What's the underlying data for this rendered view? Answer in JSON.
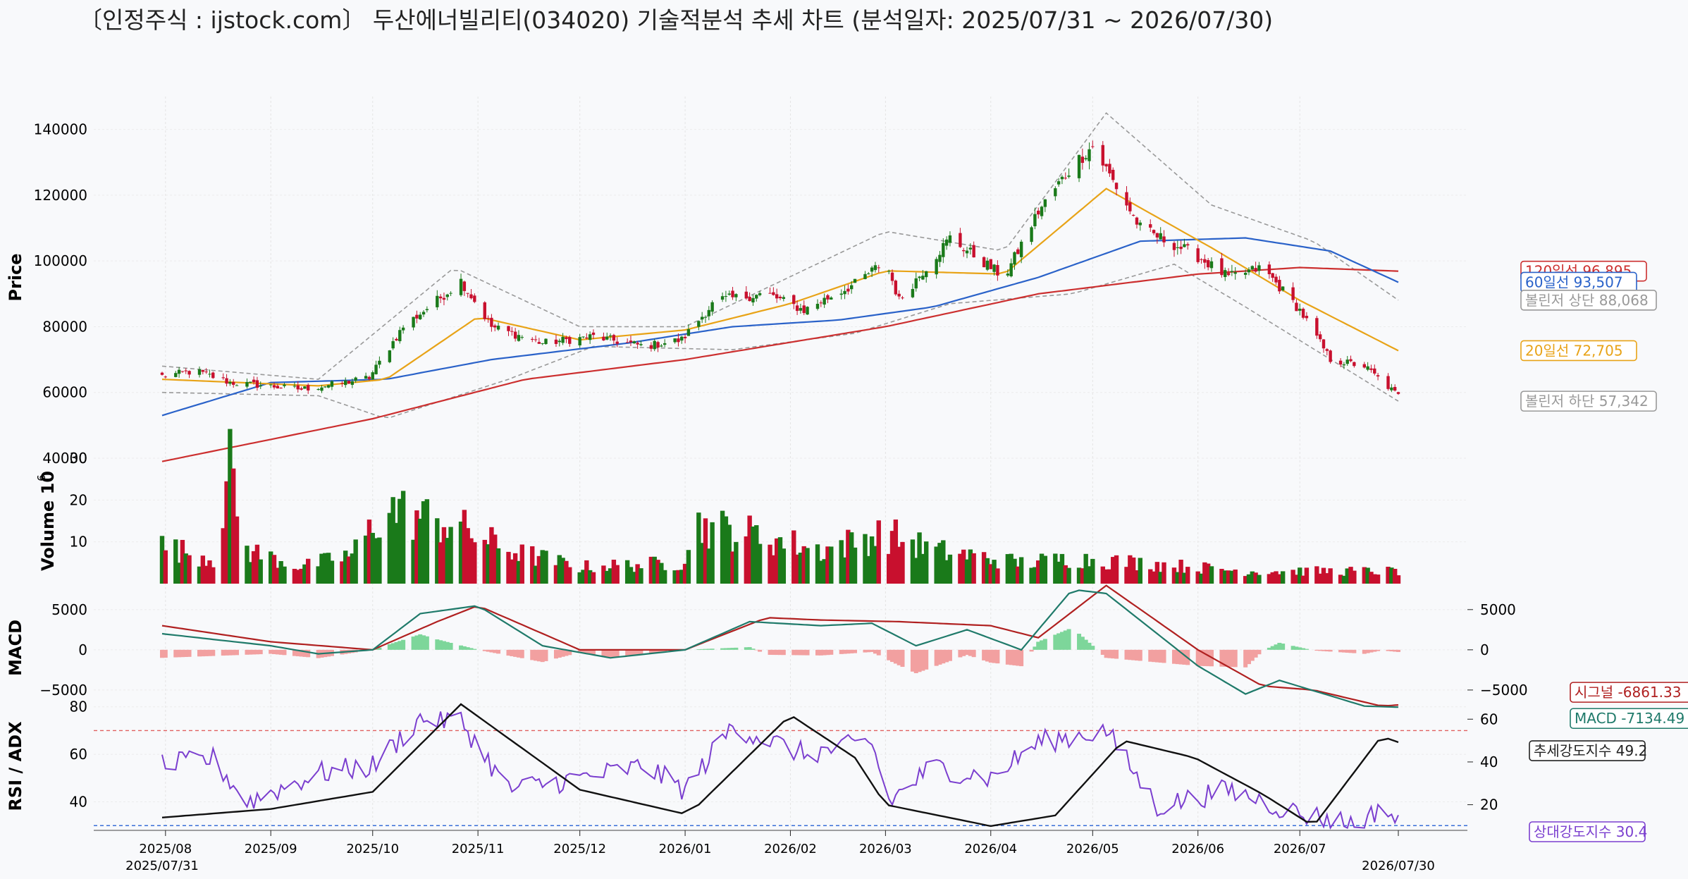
{
  "title": "〔인정주식 : ijstock.com〕 두산에너빌리티(034020) 기술적분석 추세 차트 (분석일자: 2025/07/31 ~ 2026/07/30)",
  "colors": {
    "up": "#1a7a1a",
    "down": "#c8102e",
    "ma20": "#e8a317",
    "ma60": "#2a62c9",
    "ma120": "#cc2f2f",
    "bollinger": "#999999",
    "macd": "#1f7a6a",
    "signal": "#b02020",
    "hist_pos": "#7dd69a",
    "hist_neg": "#f2a0a0",
    "rsi": "#7b3fcf",
    "adx": "#111111",
    "rsi_upper_line": "#e06060",
    "rsi_lower_line": "#3a6fd8"
  },
  "chart_data": [
    {
      "panel": "price",
      "type": "candlestick",
      "ylabel": "Price",
      "ylim": [
        40000,
        150000
      ],
      "yticks": [
        "40000",
        "60000",
        "80000",
        "100000",
        "120000",
        "140000"
      ],
      "anchors": {
        "close": [
          [
            "2025-07-31",
            65000
          ],
          [
            "2025-08-10",
            66500
          ],
          [
            "2025-08-20",
            63000
          ],
          [
            "2025-08-31",
            62000
          ],
          [
            "2025-09-10",
            61000
          ],
          [
            "2025-09-20",
            62500
          ],
          [
            "2025-09-30",
            64500
          ],
          [
            "2025-10-10",
            80000
          ],
          [
            "2025-10-20",
            88000
          ],
          [
            "2025-10-27",
            94000
          ],
          [
            "2025-11-05",
            80000
          ],
          [
            "2025-11-20",
            75000
          ],
          [
            "2025-12-05",
            77000
          ],
          [
            "2025-12-20",
            74000
          ],
          [
            "2025-12-31",
            76000
          ],
          [
            "2026-01-10",
            88000
          ],
          [
            "2026-01-25",
            90000
          ],
          [
            "2026-02-05",
            85000
          ],
          [
            "2026-02-20",
            93000
          ],
          [
            "2026-03-01",
            100000
          ],
          [
            "2026-03-05",
            88000
          ],
          [
            "2026-03-20",
            107000
          ],
          [
            "2026-04-05",
            95000
          ],
          [
            "2026-04-15",
            115000
          ],
          [
            "2026-04-25",
            129000
          ],
          [
            "2026-05-01",
            135000
          ],
          [
            "2026-05-15",
            110000
          ],
          [
            "2026-05-31",
            102000
          ],
          [
            "2026-06-10",
            95000
          ],
          [
            "2026-06-20",
            98000
          ],
          [
            "2026-07-01",
            85000
          ],
          [
            "2026-07-10",
            70000
          ],
          [
            "2026-07-20",
            68000
          ],
          [
            "2026-07-30",
            59000
          ]
        ],
        "ma20": [
          [
            "2025-07-31",
            64000
          ],
          [
            "2025-09-15",
            62000
          ],
          [
            "2025-10-05",
            64000
          ],
          [
            "2025-11-01",
            83000
          ],
          [
            "2025-12-01",
            76000
          ],
          [
            "2026-01-01",
            79000
          ],
          [
            "2026-02-01",
            87000
          ],
          [
            "2026-03-01",
            97000
          ],
          [
            "2026-04-05",
            96000
          ],
          [
            "2026-05-05",
            122000
          ],
          [
            "2026-06-05",
            104000
          ],
          [
            "2026-07-01",
            88000
          ],
          [
            "2026-07-30",
            72705
          ]
        ],
        "ma60": [
          [
            "2025-07-31",
            53000
          ],
          [
            "2025-09-01",
            63000
          ],
          [
            "2025-10-05",
            64000
          ],
          [
            "2025-11-05",
            70000
          ],
          [
            "2025-12-15",
            75000
          ],
          [
            "2026-01-15",
            80000
          ],
          [
            "2026-02-15",
            82000
          ],
          [
            "2026-03-15",
            86000
          ],
          [
            "2026-04-15",
            95000
          ],
          [
            "2026-05-15",
            106000
          ],
          [
            "2026-06-15",
            107000
          ],
          [
            "2026-07-10",
            103000
          ],
          [
            "2026-07-30",
            93507
          ]
        ],
        "ma120": [
          [
            "2025-07-31",
            39000
          ],
          [
            "2025-10-01",
            52000
          ],
          [
            "2025-11-15",
            64000
          ],
          [
            "2026-01-01",
            70000
          ],
          [
            "2026-03-01",
            80000
          ],
          [
            "2026-04-15",
            90000
          ],
          [
            "2026-06-01",
            96000
          ],
          [
            "2026-07-01",
            98000
          ],
          [
            "2026-07-30",
            96895
          ]
        ],
        "bb_upper": [
          [
            "2025-07-31",
            68000
          ],
          [
            "2025-09-15",
            64000
          ],
          [
            "2025-10-25",
            98000
          ],
          [
            "2025-12-01",
            80000
          ],
          [
            "2026-01-01",
            80000
          ],
          [
            "2026-03-01",
            109000
          ],
          [
            "2026-04-05",
            103000
          ],
          [
            "2026-05-05",
            145000
          ],
          [
            "2026-06-05",
            117000
          ],
          [
            "2026-07-05",
            106000
          ],
          [
            "2026-07-30",
            88068
          ]
        ],
        "bb_lower": [
          [
            "2025-07-31",
            60000
          ],
          [
            "2025-09-15",
            59000
          ],
          [
            "2025-10-05",
            52000
          ],
          [
            "2025-11-10",
            64000
          ],
          [
            "2025-12-05",
            74000
          ],
          [
            "2026-01-15",
            73000
          ],
          [
            "2026-02-20",
            78000
          ],
          [
            "2026-03-20",
            87000
          ],
          [
            "2026-04-25",
            90000
          ],
          [
            "2026-05-25",
            99000
          ],
          [
            "2026-06-15",
            86000
          ],
          [
            "2026-07-30",
            57342
          ]
        ]
      },
      "labels": [
        {
          "key": "ma120",
          "text": "120일선 96,895",
          "value": 96895
        },
        {
          "key": "ma60",
          "text": "60일선 93,507",
          "value": 93507
        },
        {
          "key": "bb_upper",
          "text": "볼린저 상단 88,068",
          "value": 88068
        },
        {
          "key": "ma20",
          "text": "20일선 72,705",
          "value": 72705
        },
        {
          "key": "bb_lower",
          "text": "볼린저 하단 57,342",
          "value": 57342
        }
      ]
    },
    {
      "panel": "volume",
      "type": "bar",
      "ylabel": "Volume",
      "unit_label": "10",
      "unit_exp": "6",
      "ylim": [
        0,
        30
      ],
      "yticks": [
        "10",
        "20",
        "30"
      ],
      "anchors": [
        [
          "2025-07-31",
          9
        ],
        [
          "2025-08-15",
          6
        ],
        [
          "2025-08-20",
          27
        ],
        [
          "2025-08-25",
          8
        ],
        [
          "2025-09-10",
          4
        ],
        [
          "2025-09-25",
          7
        ],
        [
          "2025-10-05",
          18
        ],
        [
          "2025-10-25",
          14
        ],
        [
          "2025-11-10",
          8
        ],
        [
          "2025-12-01",
          4
        ],
        [
          "2025-12-31",
          5
        ],
        [
          "2026-01-05",
          14
        ],
        [
          "2026-01-20",
          12
        ],
        [
          "2026-02-10",
          8
        ],
        [
          "2026-03-01",
          12
        ],
        [
          "2026-03-15",
          8
        ],
        [
          "2026-04-10",
          5
        ],
        [
          "2026-04-25",
          6
        ],
        [
          "2026-05-15",
          5
        ],
        [
          "2026-06-15",
          3
        ],
        [
          "2026-07-15",
          3
        ],
        [
          "2026-07-30",
          3
        ]
      ]
    },
    {
      "panel": "macd",
      "type": "line",
      "ylabel": "MACD",
      "ylim": [
        -6500,
        7000
      ],
      "yticks_left": [
        "5000",
        "0",
        "−5000"
      ],
      "yticks_right": [
        "5000",
        "0",
        "−5000"
      ],
      "macd": [
        [
          "2025-07-31",
          2000
        ],
        [
          "2025-09-01",
          500
        ],
        [
          "2025-09-15",
          -500
        ],
        [
          "2025-10-01",
          0
        ],
        [
          "2025-10-15",
          4500
        ],
        [
          "2025-11-01",
          5500
        ],
        [
          "2025-11-20",
          500
        ],
        [
          "2025-12-10",
          -1000
        ],
        [
          "2026-01-01",
          0
        ],
        [
          "2026-01-20",
          3500
        ],
        [
          "2026-02-10",
          3000
        ],
        [
          "2026-02-25",
          3300
        ],
        [
          "2026-03-10",
          500
        ],
        [
          "2026-03-25",
          2500
        ],
        [
          "2026-04-10",
          0
        ],
        [
          "2026-04-25",
          7500
        ],
        [
          "2026-05-05",
          7000
        ],
        [
          "2026-06-01",
          -2000
        ],
        [
          "2026-06-15",
          -5500
        ],
        [
          "2026-06-25",
          -3800
        ],
        [
          "2026-07-20",
          -7000
        ],
        [
          "2026-07-30",
          -7134
        ]
      ],
      "signal": [
        [
          "2025-07-31",
          3000
        ],
        [
          "2025-09-01",
          1000
        ],
        [
          "2025-10-01",
          0
        ],
        [
          "2025-10-20",
          3500
        ],
        [
          "2025-11-01",
          5500
        ],
        [
          "2025-12-01",
          0
        ],
        [
          "2026-01-01",
          0
        ],
        [
          "2026-01-25",
          4000
        ],
        [
          "2026-02-10",
          3700
        ],
        [
          "2026-03-05",
          3500
        ],
        [
          "2026-04-01",
          3000
        ],
        [
          "2026-04-15",
          1500
        ],
        [
          "2026-05-05",
          8000
        ],
        [
          "2026-06-01",
          0
        ],
        [
          "2026-06-20",
          -4500
        ],
        [
          "2026-07-05",
          -5000
        ],
        [
          "2026-07-25",
          -7000
        ],
        [
          "2026-07-30",
          -6861
        ]
      ],
      "labels": [
        {
          "key": "signal",
          "text": "시그널 -6861.33",
          "value": -6861.33
        },
        {
          "key": "macd",
          "text": "MACD -7134.49",
          "value": -7134.49
        }
      ]
    },
    {
      "panel": "rsi_adx",
      "type": "line",
      "ylabel": "RSI / ADX",
      "ylim_left": [
        28,
        82
      ],
      "yticks_left": [
        "40",
        "60",
        "80"
      ],
      "ylim_right": [
        8,
        68
      ],
      "yticks_right": [
        "20",
        "40",
        "60"
      ],
      "rsi_hlines": [
        70,
        30
      ],
      "rsi": [
        [
          "2025-07-31",
          55
        ],
        [
          "2025-08-15",
          58
        ],
        [
          "2025-08-25",
          40
        ],
        [
          "2025-09-15",
          52
        ],
        [
          "2025-10-01",
          55
        ],
        [
          "2025-10-15",
          75
        ],
        [
          "2025-10-27",
          74
        ],
        [
          "2025-11-10",
          45
        ],
        [
          "2025-12-01",
          50
        ],
        [
          "2025-12-20",
          55
        ],
        [
          "2026-01-01",
          45
        ],
        [
          "2026-01-15",
          72
        ],
        [
          "2026-02-05",
          60
        ],
        [
          "2026-02-25",
          65
        ],
        [
          "2026-03-02",
          40
        ],
        [
          "2026-03-15",
          55
        ],
        [
          "2026-04-01",
          50
        ],
        [
          "2026-04-15",
          65
        ],
        [
          "2026-05-05",
          70
        ],
        [
          "2026-05-20",
          38
        ],
        [
          "2026-06-10",
          45
        ],
        [
          "2026-07-01",
          35
        ],
        [
          "2026-07-20",
          30
        ],
        [
          "2026-07-25",
          40
        ],
        [
          "2026-07-30",
          30.4
        ]
      ],
      "adx": [
        [
          "2025-07-31",
          14
        ],
        [
          "2025-09-01",
          18
        ],
        [
          "2025-10-01",
          26
        ],
        [
          "2025-10-27",
          67
        ],
        [
          "2025-12-01",
          27
        ],
        [
          "2025-12-31",
          16
        ],
        [
          "2026-01-05",
          20
        ],
        [
          "2026-02-01",
          62
        ],
        [
          "2026-02-20",
          42
        ],
        [
          "2026-03-01",
          20
        ],
        [
          "2026-04-01",
          10
        ],
        [
          "2026-04-20",
          15
        ],
        [
          "2026-05-10",
          50
        ],
        [
          "2026-05-31",
          42
        ],
        [
          "2026-06-20",
          25
        ],
        [
          "2026-07-05",
          10
        ],
        [
          "2026-07-25",
          52
        ],
        [
          "2026-07-30",
          49.2
        ]
      ],
      "labels": [
        {
          "key": "adx",
          "text": "추세강도지수 49.2",
          "value": 49.2
        },
        {
          "key": "rsi",
          "text": "상대강도지수 30.4",
          "value": 30.4
        }
      ]
    }
  ],
  "x_axis": {
    "start": "2025-07-31",
    "end": "2026-07-30",
    "ticks": [
      {
        "date": "2025-08-01",
        "label": "2025/08"
      },
      {
        "date": "2025-09-01",
        "label": "2025/09"
      },
      {
        "date": "2025-10-01",
        "label": "2025/10"
      },
      {
        "date": "2025-11-01",
        "label": "2025/11"
      },
      {
        "date": "2025-12-01",
        "label": "2025/12"
      },
      {
        "date": "2026-01-01",
        "label": "2026/01"
      },
      {
        "date": "2026-02-01",
        "label": "2026/02"
      },
      {
        "date": "2026-03-01",
        "label": "2026/03"
      },
      {
        "date": "2026-04-01",
        "label": "2026/04"
      },
      {
        "date": "2026-05-01",
        "label": "2026/05"
      },
      {
        "date": "2026-06-01",
        "label": "2026/06"
      },
      {
        "date": "2026-07-01",
        "label": "2026/07"
      }
    ],
    "start_label": "2025/07/31",
    "end_label": "2026/07/30"
  }
}
